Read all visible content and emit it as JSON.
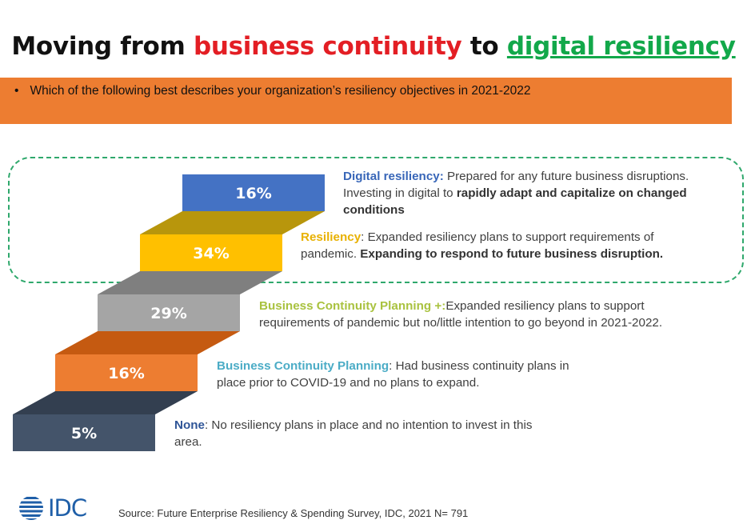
{
  "title": {
    "part1": "Moving from ",
    "part2": "business continuity",
    "part3": " to ",
    "part4": "digital resiliency"
  },
  "question": "Which of the following best describes your organization’s resiliency objectives in 2021-2022",
  "chart_data": {
    "type": "bar",
    "categories": [
      "Digital resiliency",
      "Resiliency",
      "Business Continuity Planning +",
      "Business Continuity Planning",
      "None"
    ],
    "values": [
      16,
      34,
      29,
      16,
      5
    ],
    "value_labels": [
      "16%",
      "34%",
      "29%",
      "16%",
      "5%"
    ],
    "colors": [
      "#4472c4",
      "#ffc000",
      "#a5a5a5",
      "#ed7d31",
      "#44546a"
    ],
    "connector_colors": [
      "#b8960c",
      "#7f7f7f",
      "#c55a11",
      "#333f50"
    ]
  },
  "descriptions": [
    {
      "lead": "Digital resiliency:",
      "lead_color": "#3866b8",
      "text": "  Prepared for any future business disruptions. Investing  in digital to ",
      "strong": "rapidly adapt and capitalize on changed conditions",
      "tail": ""
    },
    {
      "lead": "Resiliency",
      "lead_color": "#e8b100",
      "text": ": Expanded resiliency plans to support requirements of pandemic. ",
      "strong": "Expanding to respond to future business disruption.",
      "tail": ""
    },
    {
      "lead": "Business Continuity Planning +:",
      "lead_color": "#a9c23f",
      "text": "Expanded resiliency plans to support requirements of pandemic but no/little  intention to go beyond in 2021-2022.",
      "strong": "",
      "tail": ""
    },
    {
      "lead": "Business Continuity Planning",
      "lead_color": "#4bacc6",
      "text": ": Had business continuity  plans in place prior to COVID-19 and no plans to expand.",
      "strong": "",
      "tail": ""
    },
    {
      "lead": "None",
      "lead_color": "#2f5597",
      "text": ": No resiliency plans in place and no intention to invest in this area.",
      "strong": "",
      "tail": ""
    }
  ],
  "logo": "IDC",
  "source": "Source: Future Enterprise Resiliency & Spending Survey, IDC,  2021 N= 791"
}
